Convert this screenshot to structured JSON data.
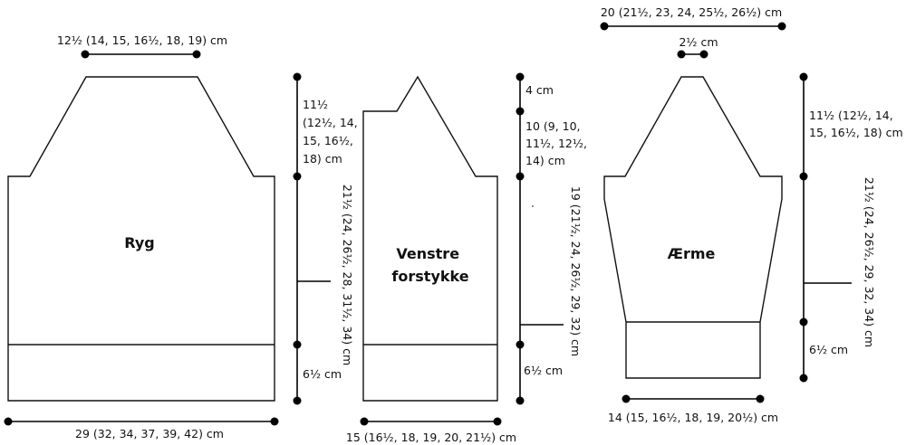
{
  "pieces": {
    "back": {
      "title": "Ryg",
      "shoulder_width": "12½ (14, 15, 16½, 18, 19) cm",
      "armhole_depth": [
        "11½",
        "(12½, 14,",
        "15, 16½,",
        "18) cm"
      ],
      "total_length": "21½ (24, 26½, 28, 31½, 34) cm",
      "ribbing": "6½ cm",
      "bottom_width": "29 (32, 34, 37, 39, 42) cm"
    },
    "left_front": {
      "title_lines": [
        "Venstre",
        "forstykke"
      ],
      "neck_depth": "4 cm",
      "armhole_depth": [
        "10 (9, 10,",
        "11½, 12½,",
        "14) cm"
      ],
      "total_length": "19 (21½, 24, 26½, 29, 32) cm",
      "ribbing": "6½ cm",
      "bottom_width": "15 (16½, 18, 19, 20, 21½) cm"
    },
    "sleeve": {
      "title": "Ærme",
      "top_width": "20 (21½, 23, 24, 25½, 26½) cm",
      "saddle_width": "2½ cm",
      "raglan_depth": [
        "11½ (12½, 14,",
        "15, 16½, 18) cm"
      ],
      "total_length": "21½ (24, 26½, 29, 32, 34) cm",
      "cuff": "6½ cm",
      "bottom_width": "14 (15, 16½, 18, 19, 20½) cm"
    }
  }
}
